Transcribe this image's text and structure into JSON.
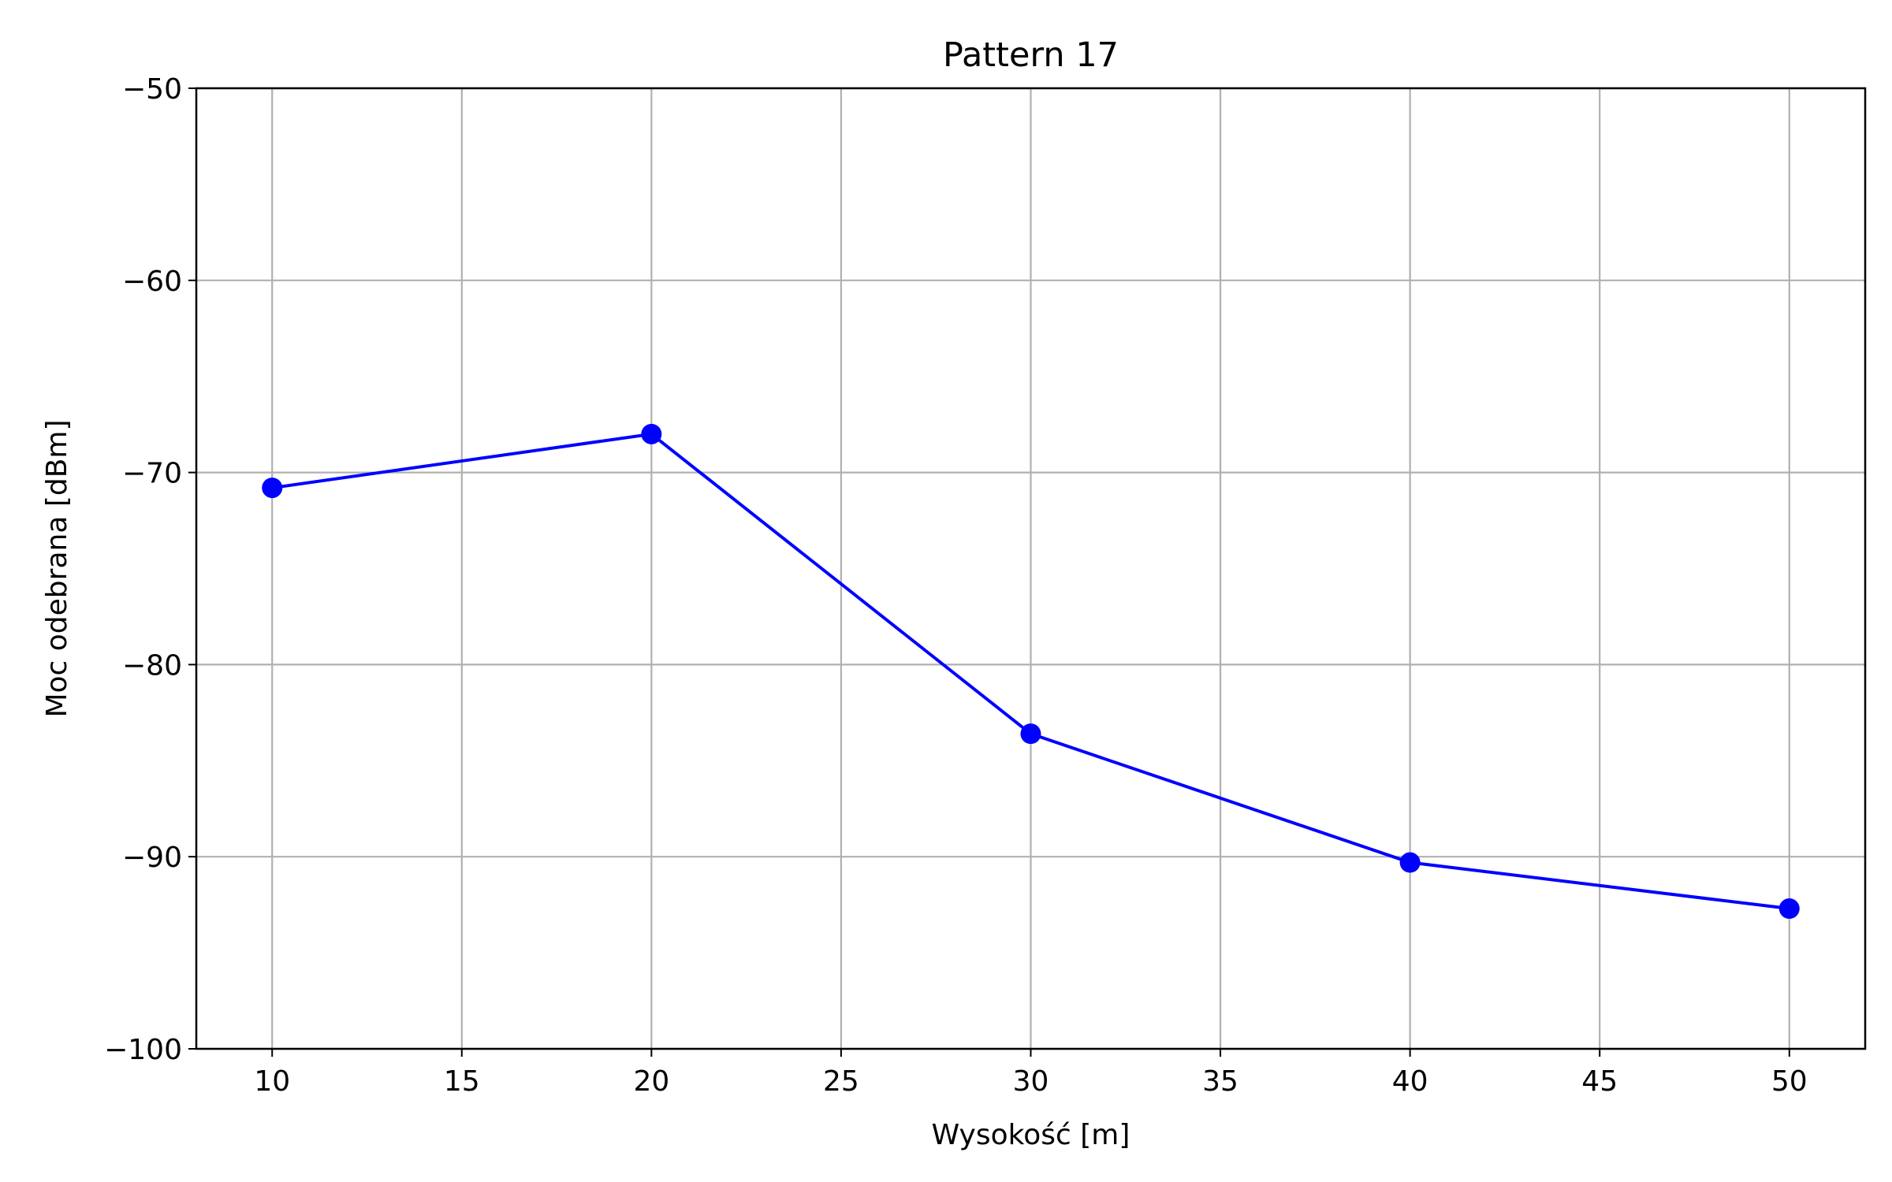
{
  "chart_data": {
    "type": "line",
    "title": "Pattern 17",
    "xlabel": "Wysokość [m]",
    "ylabel": "Moc odebrana [dBm]",
    "xlim": [
      8,
      52
    ],
    "ylim": [
      -100,
      -50
    ],
    "xticks": [
      10,
      15,
      20,
      25,
      30,
      35,
      40,
      45,
      50
    ],
    "yticks": [
      -100,
      -90,
      -80,
      -70,
      -60,
      -50
    ],
    "grid": true,
    "series": [
      {
        "x": [
          10,
          20,
          30,
          40,
          50
        ],
        "y": [
          -70.8,
          -68.0,
          -83.6,
          -90.3,
          -92.7
        ],
        "color": "#0000ff",
        "marker": "circle"
      }
    ]
  }
}
